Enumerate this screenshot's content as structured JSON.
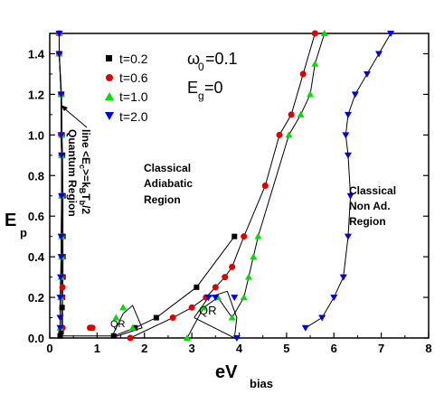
{
  "chart_data": {
    "type": "scatter",
    "title": "",
    "xlabel": "eV",
    "xlabel_sub": "bias",
    "ylabel": "E",
    "ylabel_sub": "p",
    "xlim": [
      0,
      8
    ],
    "ylim": [
      0,
      1.5
    ],
    "x_ticks": [
      "0",
      "1",
      "2",
      "3",
      "4",
      "5",
      "6",
      "7",
      "8"
    ],
    "y_ticks": [
      "0.0",
      "0.2",
      "0.4",
      "0.6",
      "0.8",
      "1.0",
      "1.2",
      "1.4"
    ],
    "legend_position": "top-left",
    "grid": false,
    "params": {
      "omega_base": "ω",
      "omega_sub": "0",
      "omega_value": "=0.1",
      "eg_base": "E",
      "eg_sub": "g",
      "eg_value": "=0"
    },
    "annotations": {
      "classical_adiabatic": [
        "Classical",
        "Adiabatic",
        "Region"
      ],
      "classical_nonad": [
        "Classical",
        "Non Ad.",
        "Region"
      ],
      "quantum_line": [
        "line <E",
        "c",
        ">=k",
        "B",
        "T",
        "b",
        "/2"
      ],
      "quantum_region": "Quantum Region",
      "qr_small": "QR",
      "qr_large": "QR"
    },
    "series": [
      {
        "name": "t=0.2",
        "marker": "square",
        "color": "#000000",
        "x": [
          0.2,
          0.2,
          0.25,
          0.26,
          0.27,
          0.28,
          0.28,
          0.28,
          0.28,
          0.27,
          0.26,
          0.25,
          0.24,
          0.22,
          1.35,
          1.8,
          2.25,
          3.1,
          3.9
        ],
        "y": [
          1.5,
          1.4,
          1.2,
          1.0,
          0.9,
          0.7,
          0.5,
          0.4,
          0.3,
          0.2,
          0.15,
          0.05,
          0.03,
          0.01,
          0.01,
          0.05,
          0.1,
          0.25,
          0.5
        ]
      },
      {
        "name": "t=0.6",
        "marker": "circle",
        "color": "#e00000",
        "x": [
          0.2,
          0.2,
          0.24,
          0.24,
          0.25,
          0.26,
          0.26,
          0.26,
          0.26,
          0.26,
          0.27,
          0.27,
          0.85,
          0.9,
          1.7,
          2.6,
          3.0,
          3.3,
          3.5,
          3.7,
          3.85,
          4.1,
          4.55,
          4.85,
          5.1,
          5.35,
          5.6
        ],
        "y": [
          1.5,
          1.4,
          1.2,
          1.0,
          0.9,
          0.7,
          0.5,
          0.4,
          0.3,
          0.2,
          0.25,
          0.05,
          0.05,
          0.05,
          0.0,
          0.1,
          0.15,
          0.2,
          0.25,
          0.3,
          0.35,
          0.5,
          0.75,
          1.0,
          1.1,
          1.3,
          1.5
        ]
      },
      {
        "name": "t=1.0",
        "marker": "triangle-up",
        "color": "#00e000",
        "x": [
          0.2,
          0.2,
          0.24,
          0.25,
          0.25,
          0.25,
          0.25,
          0.25,
          0.24,
          0.23,
          0.22,
          1.4,
          1.55,
          1.75,
          2.9,
          3.25,
          3.55,
          3.85,
          4.1,
          4.2,
          4.3,
          4.4,
          5.05,
          5.3,
          5.5,
          5.6,
          5.8
        ],
        "y": [
          1.5,
          1.4,
          1.2,
          1.0,
          0.9,
          0.7,
          0.5,
          0.4,
          0.3,
          0.2,
          0.05,
          0.1,
          0.15,
          0.05,
          0.0,
          0.15,
          0.2,
          0.1,
          0.2,
          0.3,
          0.4,
          0.5,
          1.0,
          1.1,
          1.2,
          1.35,
          1.5
        ]
      },
      {
        "name": "t=2.0",
        "marker": "triangle-down",
        "color": "#0000e0",
        "x": [
          0.2,
          0.2,
          0.24,
          0.24,
          0.25,
          0.25,
          0.24,
          0.24,
          0.23,
          0.22,
          0.22,
          0.22,
          3.35,
          3.5,
          3.9,
          3.95,
          5.4,
          5.75,
          6.0,
          6.2,
          6.3,
          6.35,
          6.3,
          6.25,
          6.3,
          6.45,
          6.7,
          6.95,
          7.2
        ],
        "y": [
          1.5,
          1.4,
          1.2,
          1.0,
          0.9,
          0.7,
          0.5,
          0.4,
          0.3,
          0.2,
          0.1,
          0.05,
          0.2,
          0.2,
          0.2,
          0.0,
          0.05,
          0.1,
          0.2,
          0.3,
          0.5,
          0.7,
          0.9,
          1.0,
          1.1,
          1.2,
          1.3,
          1.4,
          1.5
        ]
      }
    ]
  }
}
